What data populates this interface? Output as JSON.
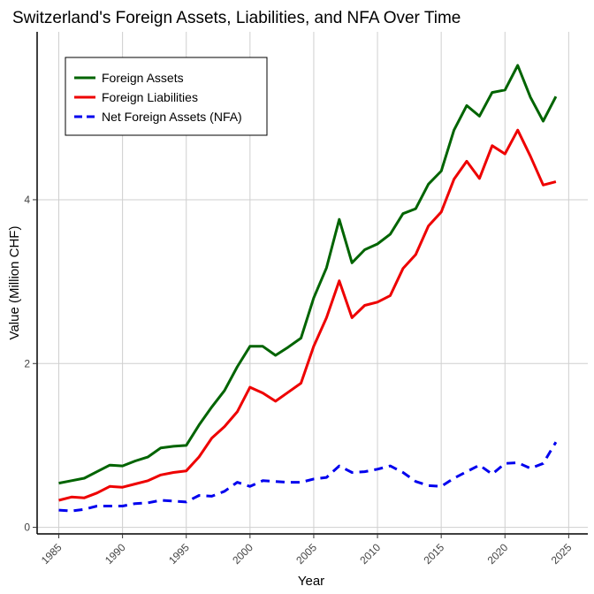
{
  "chart_data": {
    "type": "line",
    "title": "Switzerland's Foreign Assets, Liabilities, and NFA Over Time",
    "xlabel": "Year",
    "ylabel": "Value (Million CHF)",
    "xlim": [
      1983.3,
      2026.5
    ],
    "ylim": [
      -0.08,
      6.05
    ],
    "x_ticks": [
      1985,
      1990,
      1995,
      2000,
      2005,
      2010,
      2015,
      2020,
      2025
    ],
    "y_ticks": [
      0,
      2,
      4
    ],
    "grid": true,
    "legend_position": "top-left",
    "x": [
      1985,
      1986,
      1987,
      1988,
      1989,
      1990,
      1991,
      1992,
      1993,
      1994,
      1995,
      1996,
      1997,
      1998,
      1999,
      2000,
      2001,
      2002,
      2003,
      2004,
      2005,
      2006,
      2007,
      2008,
      2009,
      2010,
      2011,
      2012,
      2013,
      2014,
      2015,
      2016,
      2017,
      2018,
      2019,
      2020,
      2021,
      2022,
      2023,
      2024
    ],
    "series": [
      {
        "name": "Foreign Assets",
        "color": "#006400",
        "dash": "solid",
        "values": [
          0.54,
          0.57,
          0.6,
          0.68,
          0.76,
          0.75,
          0.81,
          0.86,
          0.97,
          0.99,
          1.0,
          1.25,
          1.47,
          1.67,
          1.96,
          2.21,
          2.21,
          2.1,
          2.2,
          2.31,
          2.8,
          3.17,
          3.76,
          3.23,
          3.39,
          3.46,
          3.58,
          3.83,
          3.89,
          4.19,
          4.35,
          4.85,
          5.15,
          5.02,
          5.31,
          5.34,
          5.64,
          5.25,
          4.96,
          5.26
        ]
      },
      {
        "name": "Foreign Liabilities",
        "color": "#ee0000",
        "dash": "solid",
        "values": [
          0.33,
          0.37,
          0.36,
          0.42,
          0.5,
          0.49,
          0.53,
          0.57,
          0.64,
          0.67,
          0.69,
          0.86,
          1.09,
          1.23,
          1.41,
          1.71,
          1.64,
          1.54,
          1.65,
          1.76,
          2.21,
          2.56,
          3.01,
          2.56,
          2.71,
          2.75,
          2.83,
          3.16,
          3.33,
          3.68,
          3.85,
          4.25,
          4.47,
          4.26,
          4.66,
          4.56,
          4.85,
          4.53,
          4.18,
          4.22
        ]
      },
      {
        "name": "Net Foreign Assets (NFA)",
        "color": "#0000ee",
        "dash": "dashed",
        "values": [
          0.21,
          0.2,
          0.22,
          0.26,
          0.26,
          0.26,
          0.29,
          0.3,
          0.33,
          0.32,
          0.31,
          0.39,
          0.38,
          0.44,
          0.55,
          0.5,
          0.57,
          0.56,
          0.55,
          0.55,
          0.59,
          0.61,
          0.75,
          0.67,
          0.68,
          0.71,
          0.75,
          0.67,
          0.56,
          0.51,
          0.5,
          0.6,
          0.68,
          0.76,
          0.65,
          0.78,
          0.79,
          0.72,
          0.78,
          1.04
        ]
      }
    ]
  }
}
